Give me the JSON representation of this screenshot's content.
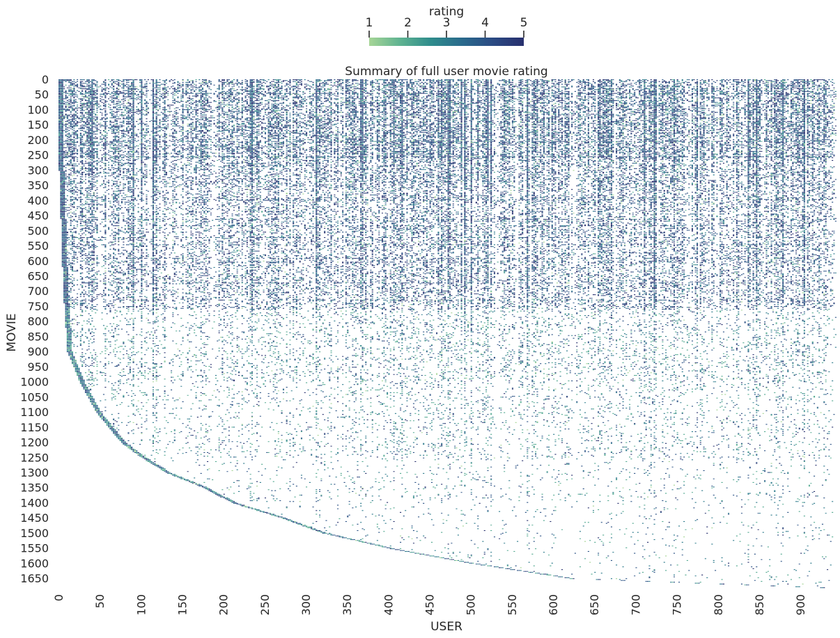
{
  "chart_data": {
    "type": "heatmap",
    "title": "Summary of full user movie rating",
    "xlabel": "USER",
    "ylabel": "MOVIE",
    "xlim": [
      0,
      943
    ],
    "ylim": [
      0,
      1682
    ],
    "x_ticks": [
      0,
      50,
      100,
      150,
      200,
      250,
      300,
      350,
      400,
      450,
      500,
      550,
      600,
      650,
      700,
      750,
      800,
      850,
      900
    ],
    "y_ticks": [
      0,
      50,
      100,
      150,
      200,
      250,
      300,
      350,
      400,
      450,
      500,
      550,
      600,
      650,
      700,
      750,
      800,
      850,
      900,
      950,
      1000,
      1050,
      1100,
      1150,
      1200,
      1250,
      1300,
      1350,
      1400,
      1450,
      1500,
      1550,
      1600,
      1650
    ],
    "colorbar": {
      "label": "rating",
      "ticks": [
        1,
        2,
        3,
        4,
        5
      ],
      "range": [
        1,
        5
      ],
      "placement": "top",
      "colors": [
        "#a6d596",
        "#5fb391",
        "#2f8c8c",
        "#2a6a8c",
        "#2b4a83",
        "#28306e"
      ]
    },
    "grid": false,
    "background": "#ffffff",
    "pattern": {
      "description_values": "sparse rating matrix; rows sorted by first-rater user index",
      "onset_curve_movie": [
        0,
        300,
        700,
        900,
        1000,
        1100,
        1200,
        1250,
        1300,
        1350,
        1400,
        1450,
        1500,
        1550,
        1600,
        1650,
        1682
      ],
      "onset_curve_user": [
        0,
        0,
        5,
        10,
        25,
        45,
        75,
        100,
        130,
        175,
        210,
        270,
        320,
        400,
        500,
        620,
        943
      ]
    }
  }
}
